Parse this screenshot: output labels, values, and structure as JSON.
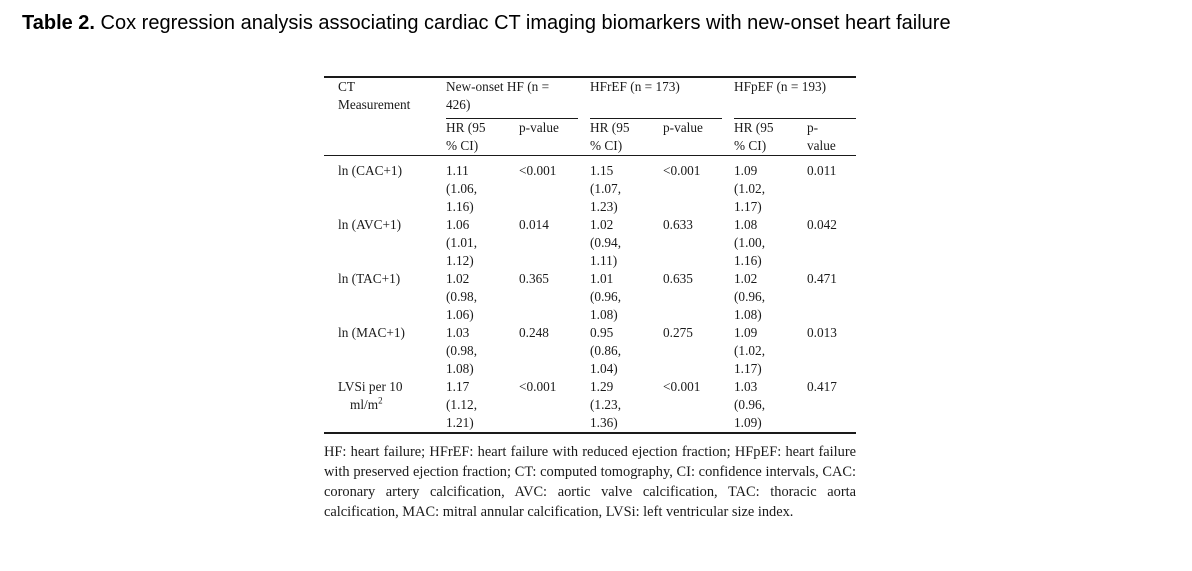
{
  "caption": {
    "label": "Table 2.",
    "text": " Cox regression analysis associating cardiac CT imaging biomarkers with new-onset heart failure"
  },
  "table": {
    "header": {
      "measurement": "CT",
      "measurement_2": "Measurement",
      "groups": [
        {
          "name_1": "New-onset HF (n =",
          "name_2": "426)"
        },
        {
          "name_1": "HFrEF (n = 173)",
          "name_2": ""
        },
        {
          "name_1": "HFpEF (n = 193)",
          "name_2": ""
        }
      ],
      "sub": {
        "hr_1": "HR (95",
        "hr_2": "% CI)",
        "p": "p-value",
        "p_split_1": "p-",
        "p_split_2": "value"
      }
    },
    "rows": [
      {
        "measure": "ln (CAC+1)",
        "hf": {
          "hr": "1.11",
          "ci_1": "(1.06,",
          "ci_2": "1.16)",
          "p": "<0.001"
        },
        "hfref": {
          "hr": "1.15",
          "ci_1": "(1.07,",
          "ci_2": "1.23)",
          "p": "<0.001"
        },
        "hfpef": {
          "hr": "1.09",
          "ci_1": "(1.02,",
          "ci_2": "1.17)",
          "p": "0.011"
        }
      },
      {
        "measure": "ln (AVC+1)",
        "hf": {
          "hr": "1.06",
          "ci_1": "(1.01,",
          "ci_2": "1.12)",
          "p": "0.014"
        },
        "hfref": {
          "hr": "1.02",
          "ci_1": "(0.94,",
          "ci_2": "1.11)",
          "p": "0.633"
        },
        "hfpef": {
          "hr": "1.08",
          "ci_1": "(1.00,",
          "ci_2": "1.16)",
          "p": "0.042"
        }
      },
      {
        "measure": "ln (TAC+1)",
        "hf": {
          "hr": "1.02",
          "ci_1": "(0.98,",
          "ci_2": "1.06)",
          "p": "0.365"
        },
        "hfref": {
          "hr": "1.01",
          "ci_1": "(0.96,",
          "ci_2": "1.08)",
          "p": "0.635"
        },
        "hfpef": {
          "hr": "1.02",
          "ci_1": "(0.96,",
          "ci_2": "1.08)",
          "p": "0.471"
        }
      },
      {
        "measure": "ln (MAC+1)",
        "hf": {
          "hr": "1.03",
          "ci_1": "(0.98,",
          "ci_2": "1.08)",
          "p": "0.248"
        },
        "hfref": {
          "hr": "0.95",
          "ci_1": "(0.86,",
          "ci_2": "1.04)",
          "p": "0.275"
        },
        "hfpef": {
          "hr": "1.09",
          "ci_1": "(1.02,",
          "ci_2": "1.17)",
          "p": "0.013"
        }
      },
      {
        "measure_1": "LVSi per 10",
        "measure_2": "ml/m",
        "measure_sup": "2",
        "hf": {
          "hr": "1.17",
          "ci_1": "(1.12,",
          "ci_2": "1.21)",
          "p": "<0.001"
        },
        "hfref": {
          "hr": "1.29",
          "ci_1": "(1.23,",
          "ci_2": "1.36)",
          "p": "<0.001"
        },
        "hfpef": {
          "hr": "1.03",
          "ci_1": "(0.96,",
          "ci_2": "1.09)",
          "p": "0.417"
        }
      }
    ]
  },
  "footnote": "HF: heart failure; HFrEF: heart failure with reduced ejection fraction; HFpEF: heart failure with preserved ejection fraction; CT: computed tomography, CI: confidence intervals, CAC: coronary artery calcification, AVC: aortic valve calcification, TAC: thoracic aorta calcification, MAC: mitral annular calcification, LVSi: left ventricular size index."
}
